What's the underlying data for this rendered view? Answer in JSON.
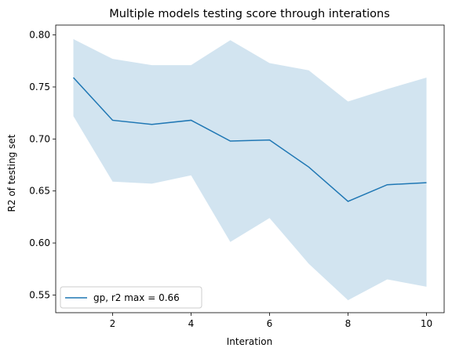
{
  "chart_data": {
    "type": "line",
    "title": "Multiple models testing score through interations",
    "xlabel": "Interation",
    "ylabel": "R2 of testing set",
    "xlim": [
      0.55,
      10.45
    ],
    "ylim": [
      0.533,
      0.8095
    ],
    "xticks": [
      2,
      4,
      6,
      8,
      10
    ],
    "yticks": [
      0.55,
      0.6,
      0.65,
      0.7,
      0.75,
      0.8
    ],
    "ytick_labels": [
      "0.55",
      "0.60",
      "0.65",
      "0.70",
      "0.75",
      "0.80"
    ],
    "grid": false,
    "legend_position": "lower-left",
    "series": [
      {
        "name": "gp, r2 max = 0.66",
        "color": "#1f77b4",
        "band_color": "#1f77b4",
        "x": [
          1,
          2,
          3,
          4,
          5,
          6,
          7,
          8,
          9,
          10
        ],
        "y": [
          0.759,
          0.718,
          0.714,
          0.718,
          0.698,
          0.699,
          0.673,
          0.64,
          0.656,
          0.658
        ],
        "upper": [
          0.796,
          0.777,
          0.771,
          0.771,
          0.795,
          0.773,
          0.766,
          0.736,
          0.748,
          0.759
        ],
        "lower": [
          0.722,
          0.659,
          0.657,
          0.665,
          0.601,
          0.624,
          0.58,
          0.545,
          0.565,
          0.558
        ]
      }
    ]
  }
}
